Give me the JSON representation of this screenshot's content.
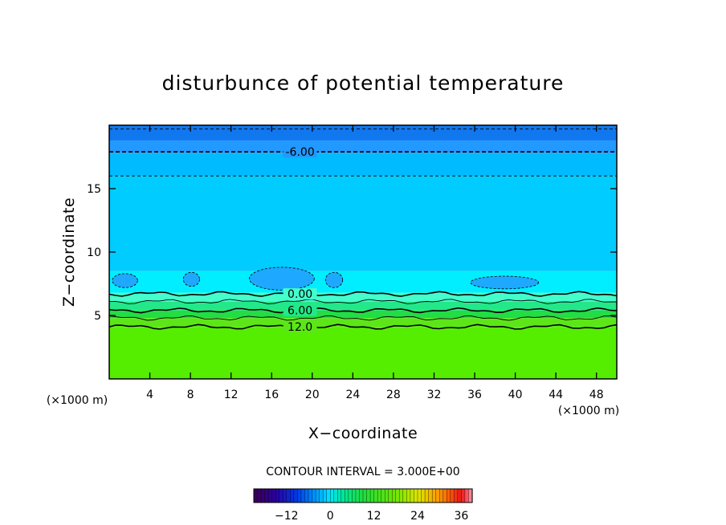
{
  "chart_data": {
    "type": "heatmap",
    "title": "disturbunce of potential temperature",
    "xlabel": "X−coordinate",
    "ylabel": "Z−coordinate",
    "x_unit": "(×1000 m)",
    "y_unit": "(×1000 m)",
    "xlim": [
      0,
      50
    ],
    "ylim": [
      0,
      20
    ],
    "x_ticks": [
      4,
      8,
      12,
      16,
      20,
      24,
      28,
      32,
      36,
      40,
      44,
      48
    ],
    "y_ticks": [
      5,
      10,
      15
    ],
    "contour_interval_text": "CONTOUR INTERVAL = 3.000E+00",
    "contour_interval": 3.0,
    "colorbar": {
      "min": -21,
      "max": 39,
      "ticks": [
        -12,
        0,
        12,
        24,
        36
      ]
    },
    "layers": [
      {
        "z_from": 0,
        "z_to": 4.1,
        "value": 18,
        "color": "#55ee00"
      },
      {
        "z_from": 4.1,
        "z_to": 4.8,
        "value": 15,
        "color": "#5ce618"
      },
      {
        "z_from": 4.8,
        "z_to": 5.4,
        "value": 12,
        "color": "#22dd44"
      },
      {
        "z_from": 5.4,
        "z_to": 6.1,
        "value": 6,
        "color": "#22e88a"
      },
      {
        "z_from": 6.1,
        "z_to": 6.8,
        "value": 3,
        "color": "#44ffcc"
      },
      {
        "z_from": 6.8,
        "z_to": 8.5,
        "value": 0,
        "color": "#00eeff"
      },
      {
        "z_from": 8.5,
        "z_to": 16.0,
        "value": -3,
        "color": "#00ccff"
      },
      {
        "z_from": 16.0,
        "z_to": 17.8,
        "value": -3,
        "color": "#00bbff"
      },
      {
        "z_from": 17.8,
        "z_to": 18.8,
        "value": -6,
        "color": "#2299ff"
      },
      {
        "z_from": 18.8,
        "z_to": 20.0,
        "value": -9,
        "color": "#1177ee"
      }
    ],
    "contours": [
      {
        "value": 12,
        "label": "12.0",
        "z": 4.1,
        "style": "solid"
      },
      {
        "value": 9,
        "label": "",
        "z": 4.8,
        "style": "solid"
      },
      {
        "value": 6,
        "label": "6.00",
        "z": 5.4,
        "style": "solid"
      },
      {
        "value": 3,
        "label": "",
        "z": 6.1,
        "style": "solid"
      },
      {
        "value": 0,
        "label": "0.00",
        "z": 6.7,
        "style": "solid"
      },
      {
        "value": -3,
        "label": "",
        "z": 16.0,
        "style": "dashed"
      },
      {
        "value": -6,
        "label": "-6.00",
        "z": 17.9,
        "style": "dashed"
      },
      {
        "value": -9,
        "label": "",
        "z": 19.7,
        "style": "dashed"
      }
    ],
    "cold_cells": [
      {
        "x_from": 0.3,
        "x_to": 2.8,
        "z_from": 7.2,
        "z_to": 8.3
      },
      {
        "x_from": 7.3,
        "x_to": 8.9,
        "z_from": 7.3,
        "z_to": 8.4
      },
      {
        "x_from": 13.8,
        "x_to": 20.2,
        "z_from": 7.0,
        "z_to": 8.8
      },
      {
        "x_from": 21.3,
        "x_to": 23.0,
        "z_from": 7.2,
        "z_to": 8.4
      },
      {
        "x_from": 35.6,
        "x_to": 42.3,
        "z_from": 7.1,
        "z_to": 8.1
      }
    ]
  }
}
